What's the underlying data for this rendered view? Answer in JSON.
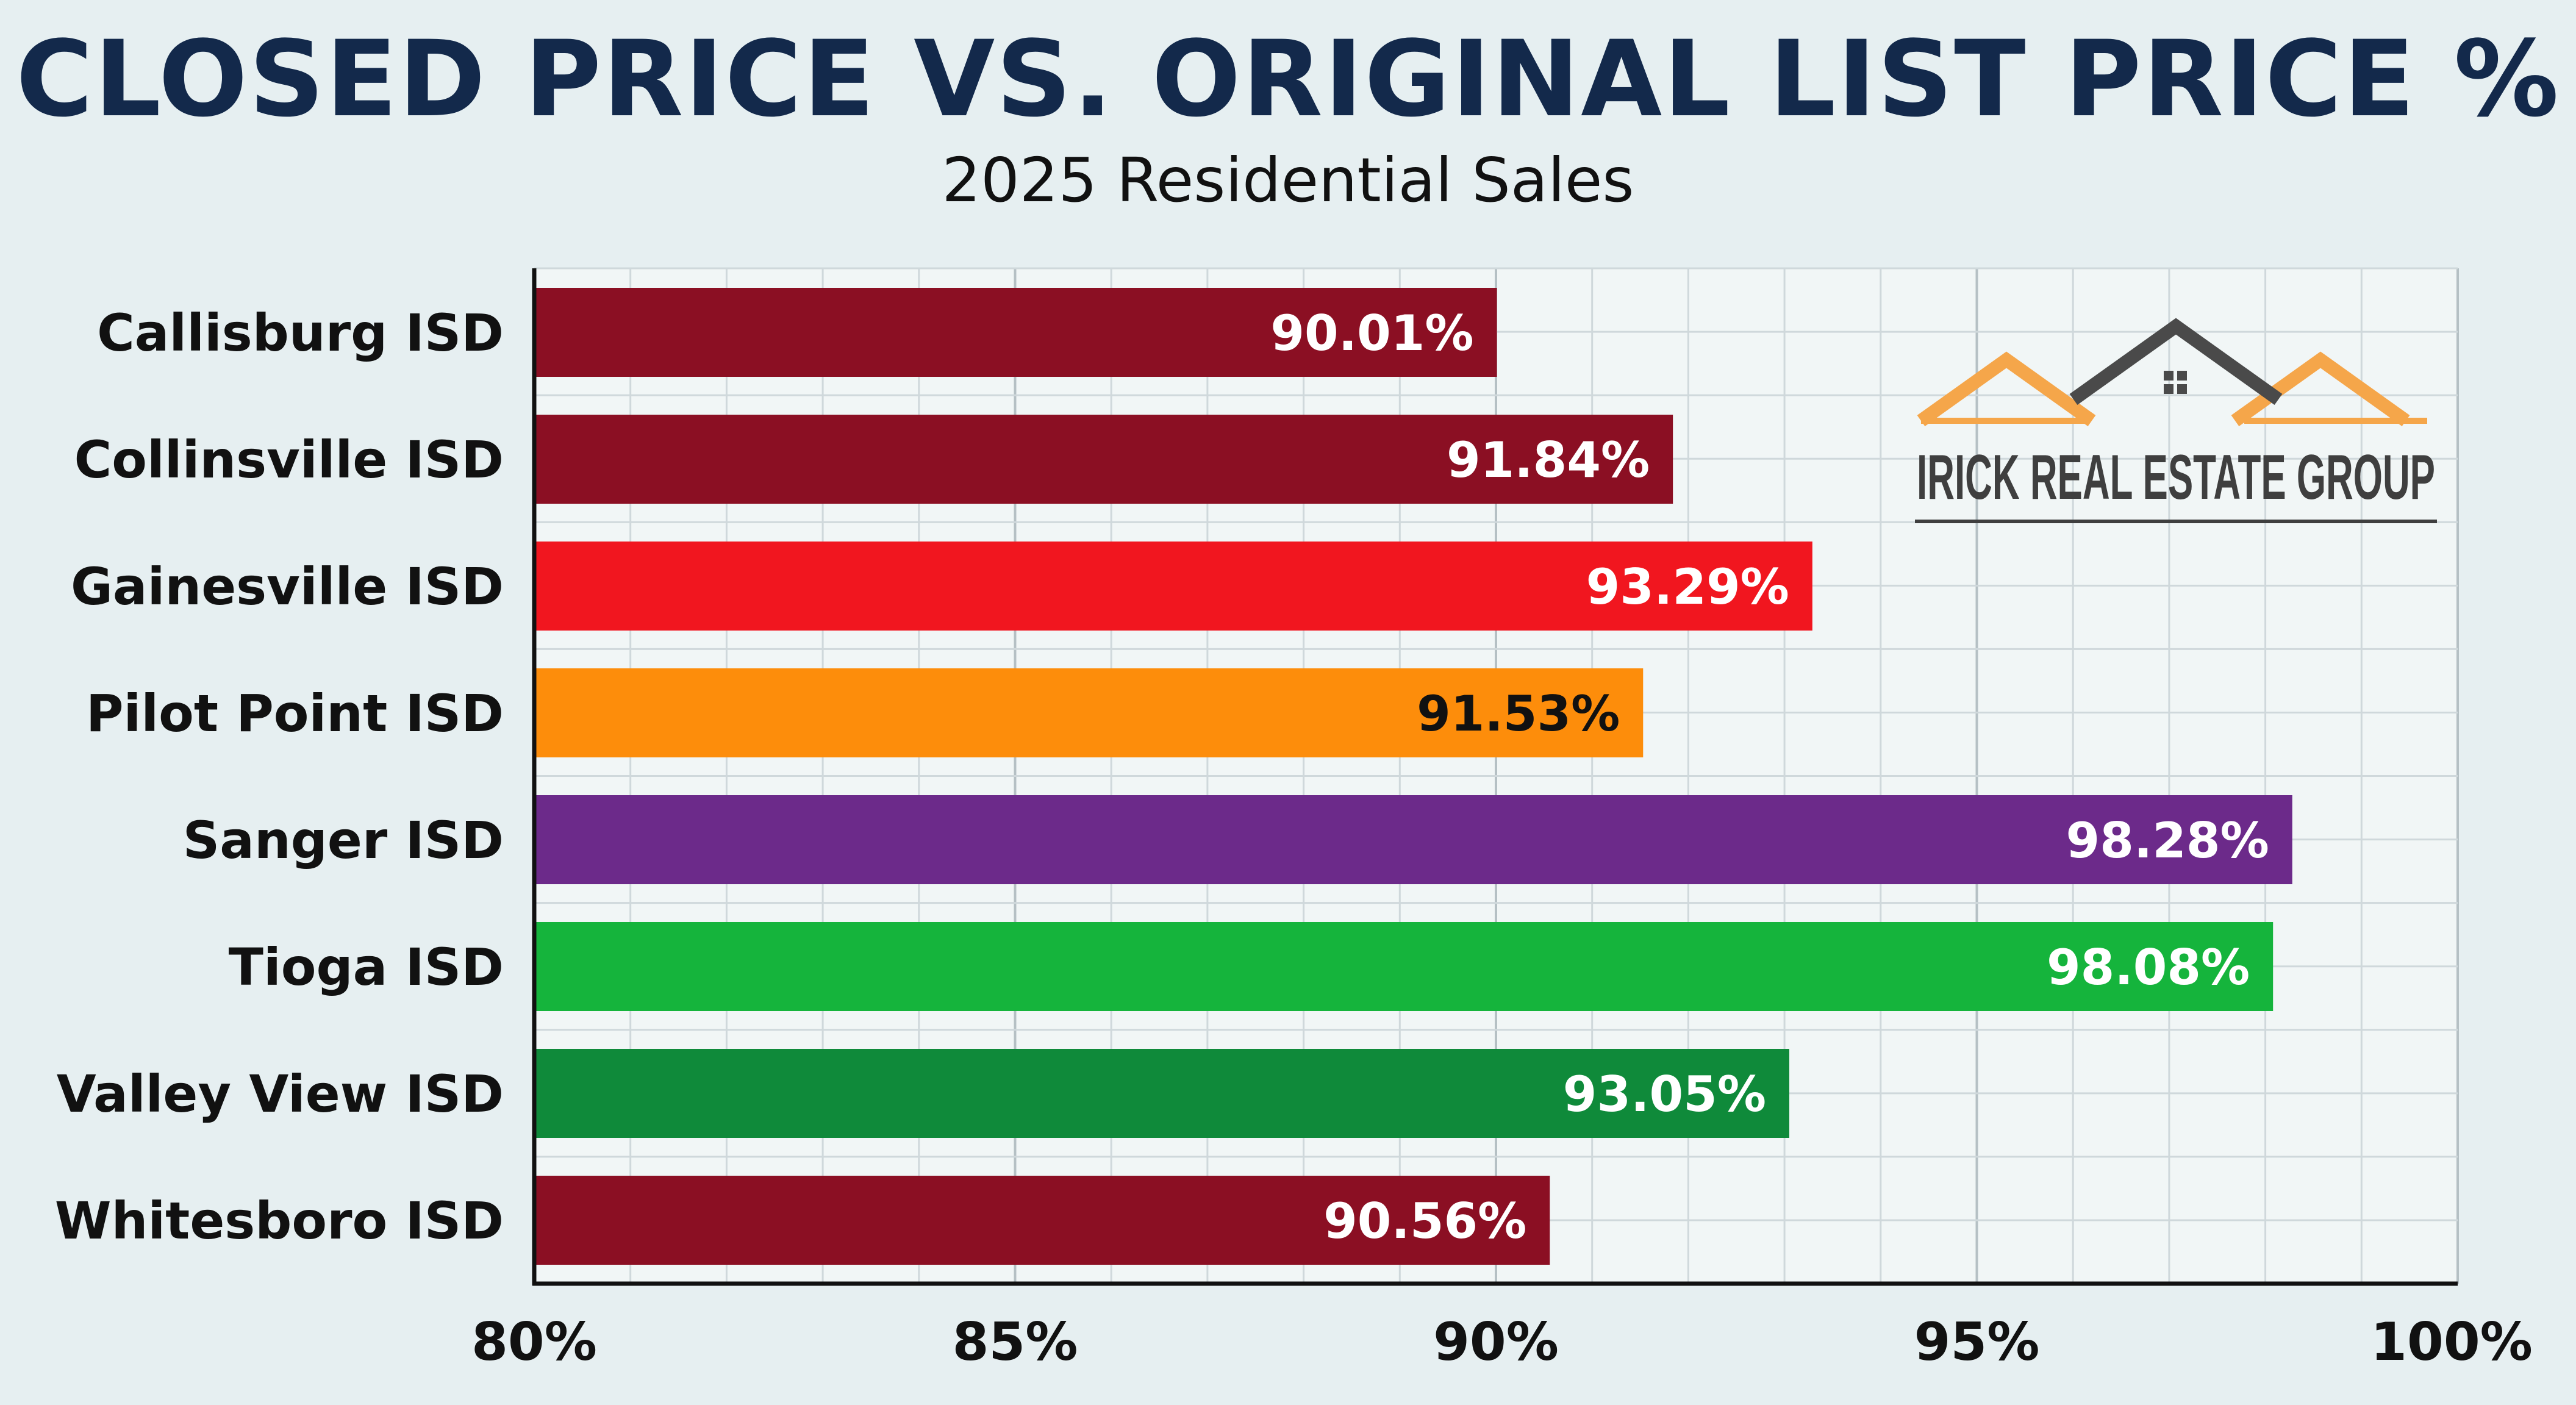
{
  "chart_data": {
    "type": "bar",
    "orientation": "horizontal",
    "title": "CLOSED PRICE VS. ORIGINAL LIST PRICE %",
    "subtitle": "2025 Residential Sales",
    "categories": [
      "Callisburg ISD",
      "Collinsville ISD",
      "Gainesville ISD",
      "Pilot Point ISD",
      "Sanger ISD",
      "Tioga ISD",
      "Valley View ISD",
      "Whitesboro ISD"
    ],
    "values": [
      90.01,
      91.84,
      93.29,
      91.53,
      98.28,
      98.08,
      93.05,
      90.56
    ],
    "value_labels": [
      "90.01%",
      "91.84%",
      "93.29%",
      "91.53%",
      "98.28%",
      "98.08%",
      "93.05%",
      "90.56%"
    ],
    "bar_colors": [
      "#8b0f23",
      "#8b0f23",
      "#f1161f",
      "#fd8d0b",
      "#6c2a8a",
      "#15b43c",
      "#0f8a3a",
      "#8b0f23"
    ],
    "label_colors": [
      "#ffffff",
      "#ffffff",
      "#ffffff",
      "#111111",
      "#ffffff",
      "#ffffff",
      "#ffffff",
      "#ffffff"
    ],
    "xlim": [
      80,
      100
    ],
    "xticks": [
      80,
      85,
      90,
      95,
      100
    ],
    "xtick_labels": [
      "80%",
      "85%",
      "90%",
      "95%",
      "100%"
    ],
    "grid": true,
    "legend": "none"
  },
  "logo": {
    "text": "IRICK REAL ESTATE GROUP",
    "icon": "house-roofs-icon",
    "colors": {
      "text": "#3f3f3f",
      "accent": "#f5a64a",
      "roof": "#4a4a4a"
    }
  }
}
